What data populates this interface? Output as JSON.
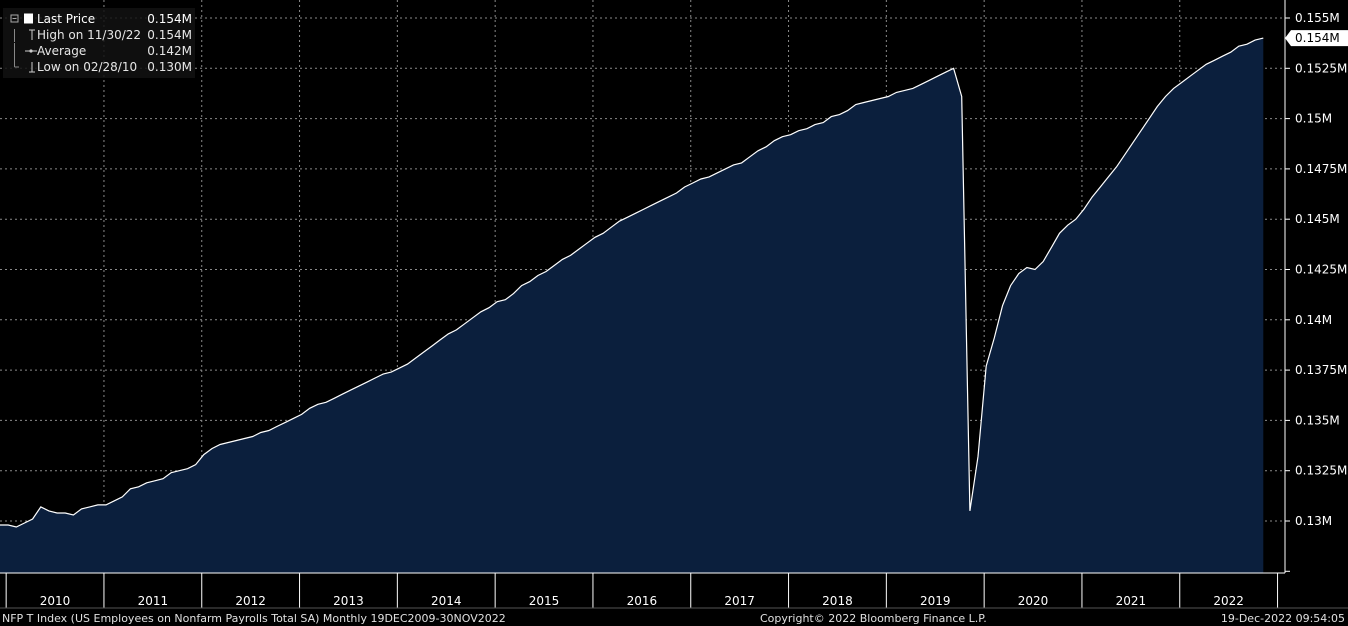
{
  "chart_data": {
    "type": "area",
    "x_start": "2009-12",
    "x_end": "2022-11",
    "frequency": "monthly",
    "x_labels": [
      "2010",
      "2011",
      "2012",
      "2013",
      "2014",
      "2015",
      "2016",
      "2017",
      "2018",
      "2019",
      "2020",
      "2021",
      "2022"
    ],
    "y_ticks": [
      "0.155M",
      "0.1525M",
      "0.15M",
      "0.1475M",
      "0.145M",
      "0.1425M",
      "0.14M",
      "0.1375M",
      "0.135M",
      "0.1325M",
      "0.13M"
    ],
    "y_tick_values": [
      155000,
      152500,
      150000,
      147500,
      145000,
      142500,
      140000,
      137500,
      135000,
      132500,
      130000
    ],
    "ylim": [
      127500,
      156000
    ],
    "last_value_label": "0.154M",
    "values": [
      129800,
      129800,
      129700,
      129900,
      130100,
      130700,
      130500,
      130400,
      130400,
      130300,
      130600,
      130700,
      130800,
      130800,
      131000,
      131200,
      131600,
      131700,
      131900,
      132000,
      132100,
      132400,
      132500,
      132600,
      132800,
      133300,
      133600,
      133800,
      133900,
      134000,
      134100,
      134200,
      134400,
      134500,
      134700,
      134900,
      135100,
      135300,
      135600,
      135800,
      135900,
      136100,
      136300,
      136500,
      136700,
      136900,
      137100,
      137300,
      137400,
      137600,
      137800,
      138100,
      138400,
      138700,
      139000,
      139300,
      139500,
      139800,
      140100,
      140400,
      140600,
      140900,
      141000,
      141300,
      141700,
      141900,
      142200,
      142400,
      142700,
      143000,
      143200,
      143500,
      143800,
      144100,
      144300,
      144600,
      144900,
      145100,
      145300,
      145500,
      145700,
      145900,
      146100,
      146300,
      146600,
      146800,
      147000,
      147100,
      147300,
      147500,
      147700,
      147800,
      148100,
      148400,
      148600,
      148900,
      149100,
      149200,
      149400,
      149500,
      149700,
      149800,
      150100,
      150200,
      150400,
      150700,
      150800,
      150900,
      151000,
      151100,
      151300,
      151400,
      151500,
      151700,
      151900,
      152100,
      152300,
      152500,
      151100,
      130500,
      133200,
      137700,
      139100,
      140700,
      141700,
      142300,
      142600,
      142500,
      142900,
      143600,
      144300,
      144700,
      145000,
      145500,
      146100,
      146600,
      147100,
      147600,
      148200,
      148800,
      149400,
      150000,
      150600,
      151100,
      151500,
      151800,
      152100,
      152400,
      152700,
      152900,
      153100,
      153300,
      153600,
      153700,
      153900,
      154000
    ]
  },
  "legend": {
    "rows": [
      {
        "label": "Last Price",
        "value": "0.154M"
      },
      {
        "label": "High on 11/30/22",
        "value": "0.154M"
      },
      {
        "label": "Average",
        "value": "0.142M"
      },
      {
        "label": "Low on 02/28/10",
        "value": "0.130M"
      }
    ]
  },
  "footer": {
    "left": "NFP T Index (US Employees on Nonfarm Payrolls Total SA)  Monthly 19DEC2009-30NOV2022",
    "center": "Copyright© 2022 Bloomberg Finance L.P.",
    "right": "19-Dec-2022 09:54:05"
  },
  "colors": {
    "background": "#000000",
    "area_fill": "#0b1f3d",
    "line": "#ffffff",
    "grid": "#8a8a8a",
    "axis": "#ffffff"
  }
}
